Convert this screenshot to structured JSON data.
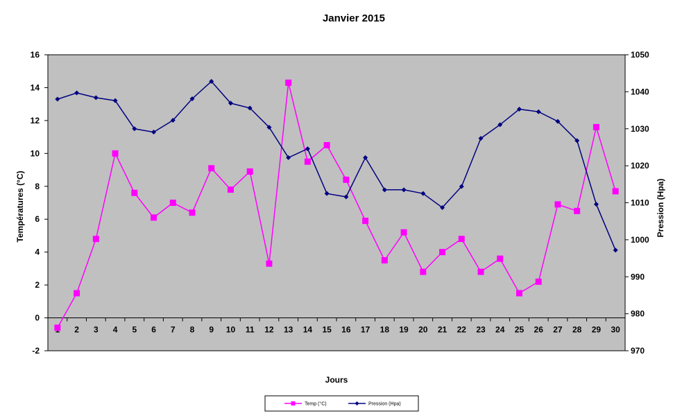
{
  "chart_data": {
    "type": "line",
    "title": "Janvier 2015",
    "xlabel": "Jours",
    "ylabel_left": "Températures  (°C)",
    "ylabel_right": "Pression (Hpa)",
    "x": [
      1,
      2,
      3,
      4,
      5,
      6,
      7,
      8,
      9,
      10,
      11,
      12,
      13,
      14,
      15,
      16,
      17,
      18,
      19,
      20,
      21,
      22,
      23,
      24,
      25,
      26,
      27,
      28,
      29,
      30
    ],
    "ylim_left": [
      -2,
      16
    ],
    "yticks_left": [
      -2,
      0,
      2,
      4,
      6,
      8,
      10,
      12,
      14,
      16
    ],
    "ylim_right": [
      970,
      1050
    ],
    "yticks_right": [
      970,
      980,
      990,
      1000,
      1010,
      1020,
      1030,
      1040,
      1050
    ],
    "grid": false,
    "legend_position": "bottom",
    "plot_background": "#C0C0C0",
    "series": [
      {
        "name": "Temp (°C)",
        "axis": "left",
        "color": "#FF00FF",
        "marker": "square",
        "values": [
          -0.6,
          1.5,
          4.8,
          10.0,
          7.6,
          6.1,
          7.0,
          6.4,
          9.1,
          7.8,
          8.9,
          3.3,
          14.3,
          9.5,
          10.5,
          8.4,
          5.9,
          3.5,
          5.2,
          2.8,
          4.0,
          4.8,
          2.8,
          3.6,
          1.5,
          2.2,
          6.9,
          6.5,
          11.6,
          7.7
        ]
      },
      {
        "name": "Pression (Hpa)",
        "axis": "right",
        "color": "#000080",
        "marker": "diamond",
        "values": [
          1038,
          1039.7,
          1038.4,
          1037.6,
          1030,
          1029.1,
          1032.3,
          1038.1,
          1042.8,
          1036.9,
          1035.6,
          1030.4,
          1022.2,
          1024.6,
          1012.5,
          1011.6,
          1022.2,
          1013.5,
          1013.5,
          1012.5,
          1008.7,
          1014.4,
          1027.4,
          1031.1,
          1035.3,
          1034.6,
          1032,
          1026.8,
          1009.6,
          997.2
        ]
      }
    ]
  }
}
